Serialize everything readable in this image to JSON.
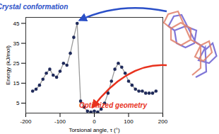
{
  "chart_data": {
    "type": "line",
    "x_label": "Torsional angle, τ (°)",
    "y_label": "Energy (kJ/mol)",
    "x": [
      -180,
      -170,
      -160,
      -150,
      -140,
      -130,
      -120,
      -110,
      -100,
      -90,
      -80,
      -70,
      -60,
      -50,
      -40,
      -30,
      -20,
      -10,
      0,
      10,
      20,
      30,
      40,
      50,
      60,
      70,
      80,
      90,
      100,
      110,
      120,
      130,
      140,
      150,
      160,
      170,
      180
    ],
    "values": [
      11,
      12,
      14,
      17,
      20,
      22,
      19,
      18,
      21,
      25,
      24,
      30,
      38,
      45,
      6,
      3,
      1,
      0.5,
      1,
      0.5,
      2,
      5,
      10,
      16,
      22,
      25,
      23,
      20,
      16,
      14,
      12,
      11,
      11,
      10,
      10,
      10,
      11
    ],
    "color": "#1f2a5a",
    "marker": "circle",
    "xlim": [
      -200,
      200
    ],
    "xticks": [
      -200,
      -100,
      0,
      100,
      200
    ],
    "ylim": [
      0,
      48
    ],
    "yticks": [
      5,
      15,
      25,
      35,
      45
    ],
    "grid": false,
    "annotations": [
      {
        "text": "Crystal conformation",
        "color": "#2b50c8"
      },
      {
        "text": "Optimized geometry",
        "color": "#e8321e"
      }
    ]
  }
}
